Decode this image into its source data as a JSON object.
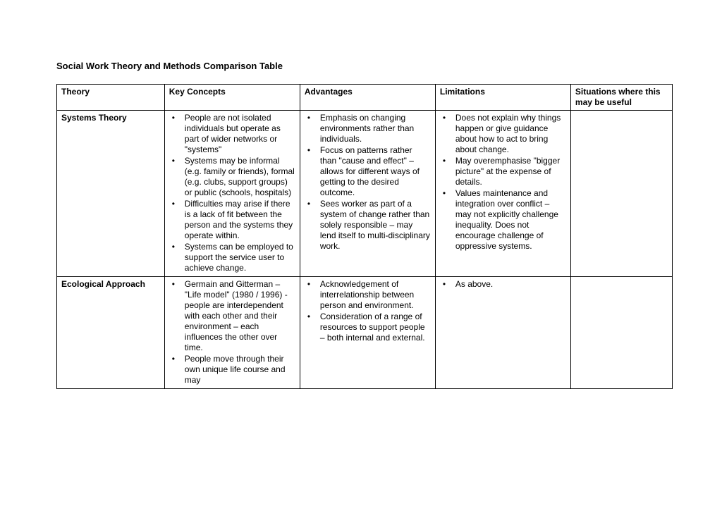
{
  "title": "Social Work Theory and Methods Comparison Table",
  "columns": [
    "Theory",
    "Key Concepts",
    "Advantages",
    "Limitations",
    "Situations where this may be useful"
  ],
  "rows": [
    {
      "theory": "Systems Theory",
      "key_concepts": [
        "People are not isolated individuals but operate as part of wider networks or \"systems\"",
        "Systems may be informal (e.g. family or friends), formal (e.g. clubs, support groups) or public (schools, hospitals)",
        "Difficulties may arise if there is a lack of fit between the person and the systems they operate within.",
        "Systems can be employed to support the service user to achieve change."
      ],
      "advantages": [
        "Emphasis on changing environments rather than individuals.",
        "Focus on patterns rather than \"cause and effect\" – allows for different ways of getting to the desired outcome.",
        "Sees worker as part of a system of change rather than solely responsible – may lend itself to multi-disciplinary work."
      ],
      "limitations": [
        "Does not explain why things happen or give guidance about how to act to bring about change.",
        "May overemphasise \"bigger picture\" at the expense of details.",
        "Values maintenance and integration over conflict – may not explicitly challenge inequality. Does not encourage challenge of oppressive systems."
      ],
      "situations": []
    },
    {
      "theory": "Ecological Approach",
      "key_concepts": [
        "Germain and Gitterman – \"Life model\" (1980 / 1996)  - people are interdependent with each other and their environment – each influences the other over time.",
        "People move through their own unique life course and may"
      ],
      "advantages": [
        "Acknowledgement of interrelationship between person and environment.",
        "Consideration of a range of resources to support people – both internal and external."
      ],
      "limitations": [
        "As above."
      ],
      "situations": []
    }
  ]
}
